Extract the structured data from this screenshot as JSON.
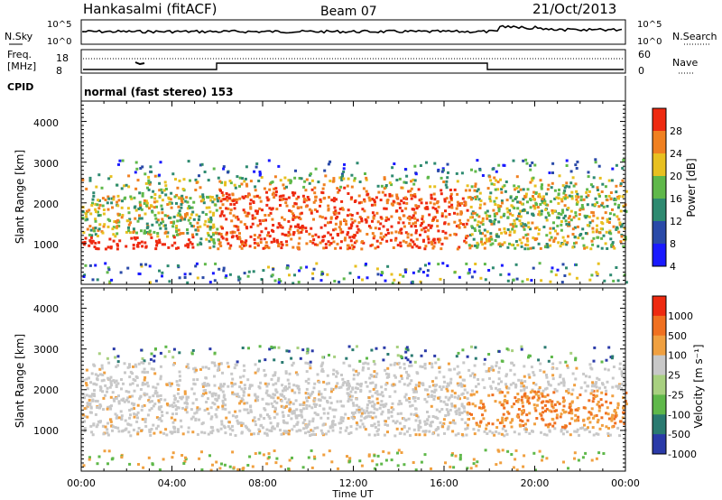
{
  "header": {
    "title": "Hankasalmi (fitACF)",
    "beam": "Beam 07",
    "date": "21/Oct/2013"
  },
  "top_panels": {
    "nsky_label": "N.Sky",
    "nsearch_label": "N.Search",
    "n_ticks_left": [
      "10^5",
      "10^0"
    ],
    "n_ticks_right": [
      "10^5",
      "10^0"
    ],
    "freq_label_1": "Freq.",
    "freq_label_2": "[MHz]",
    "freq_ticks": [
      "18",
      "8"
    ],
    "nave_label": "Nave",
    "nave_ticks": [
      "60",
      "0"
    ],
    "cpid_label": "CPID",
    "cpid_text": "normal (fast stereo) 153"
  },
  "chart_data": [
    {
      "type": "heatmap",
      "title": "",
      "ylabel": "Slant Range [km]",
      "xlabel": "Time UT",
      "xlim": [
        "00:00",
        "24:00"
      ],
      "ylim": [
        0,
        4500
      ],
      "y_ticks": [
        "1000",
        "2000",
        "3000",
        "4000"
      ],
      "x_ticks": [
        "00:00",
        "04:00",
        "08:00",
        "12:00",
        "16:00",
        "20:00",
        "00:00"
      ],
      "colorbar": {
        "label": "Power [dB]",
        "ticks": [
          "4",
          "8",
          "12",
          "16",
          "20",
          "24",
          "28"
        ],
        "colors": [
          "#1a1aff",
          "#2a4aa8",
          "#2e8a70",
          "#5fb84a",
          "#e8c020",
          "#f08020",
          "#ee2a10"
        ]
      }
    },
    {
      "type": "heatmap",
      "title": "",
      "ylabel": "Slant Range [km]",
      "xlabel": "Time UT",
      "xlim": [
        "00:00",
        "24:00"
      ],
      "ylim": [
        0,
        4500
      ],
      "y_ticks": [
        "1000",
        "2000",
        "3000",
        "4000"
      ],
      "x_ticks": [
        "00:00",
        "04:00",
        "08:00",
        "12:00",
        "16:00",
        "20:00",
        "00:00"
      ],
      "colorbar": {
        "label": "Velocity [m s⁻¹]",
        "ticks": [
          "1000",
          "500",
          "100",
          "25",
          "-25",
          "-100",
          "-500",
          "-1000"
        ],
        "colors": [
          "#2a3aa8",
          "#2a7a70",
          "#5fb84a",
          "#a8d080",
          "#c8c8c8",
          "#f0a040",
          "#f07020",
          "#ee2a10"
        ]
      }
    }
  ],
  "xaxis": {
    "ticks": [
      "00:00",
      "04:00",
      "08:00",
      "12:00",
      "16:00",
      "20:00",
      "00:00"
    ],
    "label": "Time UT"
  }
}
